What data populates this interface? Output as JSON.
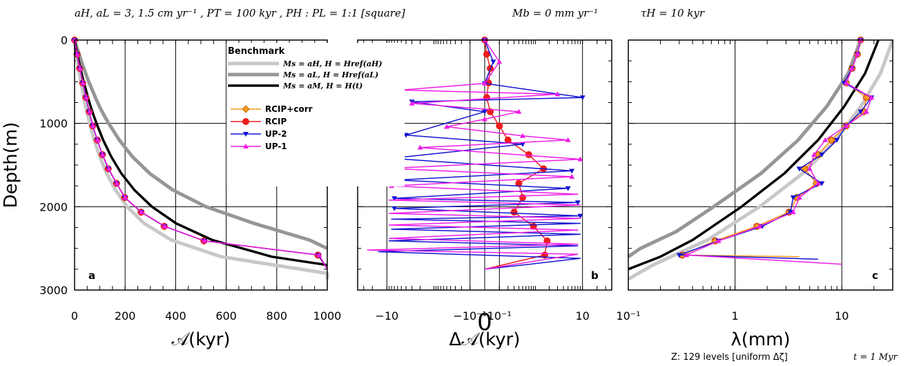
{
  "header": {
    "params": "aH, aL = 3, 1.5 cm yr⁻¹ ,  PT = 100 kyr ,  PH : PL = 1:1  [square]",
    "mb": "Mb = 0 mm yr⁻¹",
    "tau": "τH = 10 kyr"
  },
  "footer": {
    "levels": "Z:  129 levels [uniform Δζ]",
    "time": "t = 1 Myr"
  },
  "legend": {
    "title": "Benchmark",
    "entries": [
      {
        "label": "Ms = aH, H = Href(aH)",
        "color": "#c8c8c8",
        "width": 5
      },
      {
        "label": "Ms = aL, H = Href(aL)",
        "color": "#969696",
        "width": 5
      },
      {
        "label": "Ms = aM, H = H(t)",
        "color": "#000000",
        "width": 3.5
      },
      {
        "label": "RCIP+corr",
        "color": "#f59a1b",
        "marker": "diamond"
      },
      {
        "label": "RCIP",
        "color": "#ee1c1c",
        "marker": "circle"
      },
      {
        "label": "UP-2",
        "color": "#1414d2",
        "marker": "tri-down"
      },
      {
        "label": "UP-1",
        "color": "#ee1ce6",
        "marker": "tri-up"
      }
    ]
  },
  "chart_data": [
    {
      "panel": "a",
      "type": "line",
      "xlabel": "𝒜(kyr)",
      "ylabel": "Depth(m)",
      "xlim": [
        0,
        1000
      ],
      "ylim": [
        3000,
        0
      ],
      "xticks": [
        "0",
        "200",
        "400",
        "600",
        "800",
        "1000"
      ],
      "yticks": [
        "0",
        "1000",
        "2000",
        "3000"
      ],
      "grid": true,
      "series": [
        {
          "name": "Ms = aH, H = Href(aH)",
          "depth": [
            0,
            100,
            200,
            300,
            400,
            500,
            600,
            700,
            800,
            900,
            1000,
            1200,
            1400,
            1600,
            1800,
            2000,
            2200,
            2400,
            2600,
            2800,
            2870
          ],
          "values": [
            0,
            4,
            9,
            14,
            19,
            25,
            31,
            37,
            44,
            52,
            60,
            78,
            100,
            127,
            162,
            208,
            275,
            383,
            580,
            1000,
            1000
          ]
        },
        {
          "name": "Ms = aL, H = Href(aL)",
          "depth": [
            0,
            100,
            200,
            300,
            400,
            500,
            600,
            700,
            800,
            900,
            1000,
            1200,
            1400,
            1600,
            1800,
            2000,
            2200,
            2400,
            2500
          ],
          "values": [
            0,
            10,
            21,
            32,
            44,
            56,
            70,
            84,
            99,
            116,
            135,
            177,
            229,
            297,
            389,
            520,
            710,
            930,
            1000
          ]
        },
        {
          "name": "Ms = aM, H = H(t)",
          "depth": [
            0,
            100,
            200,
            300,
            400,
            500,
            600,
            700,
            800,
            900,
            1000,
            1200,
            1400,
            1600,
            1800,
            2000,
            2200,
            2400,
            2600,
            2700
          ],
          "values": [
            0,
            6,
            13,
            20,
            28,
            36,
            45,
            54,
            64,
            75,
            87,
            113,
            145,
            185,
            237,
            306,
            402,
            545,
            780,
            1000
          ]
        },
        {
          "name": "RCIP+corr",
          "depth": [
            0,
            170,
            340,
            515,
            690,
            860,
            1030,
            1200,
            1375,
            1545,
            1720,
            1890,
            2065,
            2235,
            2410,
            2580,
            2750
          ],
          "values": [
            0,
            10,
            20,
            32,
            45,
            58,
            72,
            90,
            110,
            133,
            166,
            198,
            263,
            355,
            512,
            963,
            1000
          ]
        },
        {
          "name": "RCIP",
          "depth": [
            0,
            170,
            340,
            515,
            690,
            860,
            1030,
            1200,
            1375,
            1545,
            1720,
            1890,
            2065,
            2235,
            2410,
            2580,
            2750
          ],
          "values": [
            0,
            10,
            20,
            32,
            45,
            58,
            72,
            90,
            110,
            133,
            166,
            198,
            263,
            355,
            512,
            963,
            1000
          ]
        },
        {
          "name": "UP-2",
          "depth": [
            0,
            170,
            340,
            515,
            690,
            860,
            1030,
            1200,
            1375,
            1545,
            1720,
            1890,
            2065,
            2235,
            2410,
            2580,
            2750
          ],
          "values": [
            0,
            10,
            21,
            32,
            45,
            58,
            72,
            90,
            110,
            134,
            166,
            199,
            264,
            356,
            514,
            965,
            1000
          ]
        },
        {
          "name": "UP-1",
          "depth": [
            0,
            170,
            340,
            515,
            690,
            860,
            1030,
            1200,
            1375,
            1545,
            1720,
            1890,
            2065,
            2235,
            2410,
            2580,
            2750
          ],
          "values": [
            0,
            10,
            21,
            33,
            46,
            59,
            73,
            91,
            111,
            135,
            167,
            200,
            265,
            357,
            515,
            968,
            1000
          ]
        }
      ]
    },
    {
      "panel": "b",
      "type": "line",
      "xlabel": "Δ𝒜(kyr)",
      "xscale": "symlog",
      "xlim": [
        -40,
        40
      ],
      "ylim": [
        3000,
        0
      ],
      "xticks": [
        "−10",
        "−10⁻¹",
        "0",
        "10⁻¹",
        "10"
      ],
      "grid": true,
      "series": [
        {
          "name": "RCIP",
          "depth": [
            0,
            170,
            340,
            515,
            690,
            860,
            1030,
            1200,
            1375,
            1545,
            1720,
            1890,
            2065,
            2235,
            2410,
            2580,
            2750
          ],
          "values": [
            0,
            0.01,
            0.03,
            0.02,
            0.01,
            0.03,
            0.1,
            0.2,
            0.7,
            1.5,
            0.4,
            0.5,
            0.3,
            0.9,
            1.8,
            1.6,
            0
          ]
        },
        {
          "name": "UP-2",
          "depth": [
            0,
            260,
            520,
            690,
            740,
            860,
            1140,
            1250,
            1420,
            1570,
            1680,
            1780,
            1900,
            1950,
            2020,
            2110,
            2150,
            2200,
            2270,
            2330,
            2410,
            2470,
            2540,
            2620,
            2700,
            2750
          ],
          "values": [
            0,
            0.05,
            0,
            10,
            -3,
            0,
            -4,
            0.5,
            -8,
            6,
            -6,
            5,
            -7,
            8,
            -7,
            9,
            -8,
            9,
            -8,
            9,
            -9,
            8,
            -15,
            9,
            0.5,
            0
          ]
        },
        {
          "name": "UP-1",
          "depth": [
            0,
            260,
            520,
            600,
            650,
            760,
            860,
            950,
            1040,
            1150,
            1200,
            1290,
            1430,
            1540,
            1640,
            1750,
            1850,
            1920,
            1980,
            2080,
            2140,
            2220,
            2280,
            2380,
            2450,
            2520,
            2570,
            2750
          ],
          "values": [
            0,
            0.1,
            0,
            -5,
            3,
            -3,
            0.4,
            0,
            -0.5,
            0.5,
            5,
            -2,
            9,
            -9,
            6,
            -8,
            8,
            -9,
            9,
            -9,
            9,
            -9,
            8,
            -9,
            8,
            -25,
            8,
            0
          ]
        }
      ]
    },
    {
      "panel": "c",
      "type": "line",
      "xlabel": "λ(mm)",
      "xscale": "log",
      "xlim": [
        0.1,
        30
      ],
      "ylim": [
        3000,
        0
      ],
      "xticks": [
        "10⁻¹",
        "1",
        "10"
      ],
      "grid": true,
      "series": [
        {
          "name": "Ms = aH, H = Href(aH)",
          "depth": [
            0,
            400,
            800,
            1200,
            1600,
            2000,
            2400,
            2700,
            2870
          ],
          "values": [
            30,
            23,
            15,
            8.8,
            4.3,
            1.7,
            0.55,
            0.17,
            0.1
          ]
        },
        {
          "name": "Ms = aL, H = Href(aL)",
          "depth": [
            0,
            400,
            800,
            1200,
            1600,
            2000,
            2300,
            2500,
            2600
          ],
          "values": [
            15,
            11.5,
            7.2,
            3.9,
            1.75,
            0.63,
            0.28,
            0.13,
            0.1
          ]
        },
        {
          "name": "Ms = aM, H = H(t)",
          "depth": [
            0,
            400,
            800,
            1200,
            1600,
            2000,
            2400,
            2600,
            2750
          ],
          "values": [
            22,
            16.5,
            10.5,
            6,
            2.9,
            1.15,
            0.4,
            0.2,
            0.1
          ]
        },
        {
          "name": "RCIP",
          "depth": [
            0,
            170,
            340,
            515,
            690,
            860,
            1030,
            1200,
            1375,
            1545,
            1720,
            1890,
            2065,
            2235,
            2410,
            2580
          ],
          "values": [
            15,
            14,
            12.5,
            11,
            17,
            16,
            11,
            8,
            6,
            4.5,
            5.8,
            3.8,
            3.2,
            1.6,
            0.65,
            0.32
          ]
        },
        {
          "name": "RCIP+corr",
          "depth": [
            0,
            170,
            340,
            515,
            690,
            860,
            1030,
            1200,
            1375,
            1545,
            1720,
            1890,
            2065,
            2235,
            2410,
            2580,
            2600
          ],
          "values": [
            15,
            14,
            12.5,
            11,
            17,
            16,
            11,
            8,
            6,
            4.5,
            5.8,
            3.8,
            3.2,
            1.6,
            0.65,
            0.32,
            4
          ]
        },
        {
          "name": "UP-2",
          "depth": [
            0,
            170,
            340,
            515,
            690,
            860,
            1030,
            1200,
            1375,
            1545,
            1720,
            1890,
            2065,
            2235,
            2410,
            2580,
            2630
          ],
          "values": [
            15,
            14,
            12.5,
            10.5,
            19,
            15,
            11,
            9,
            6.5,
            4,
            6.5,
            3.5,
            3.3,
            1.8,
            0.7,
            0.3,
            6
          ]
        },
        {
          "name": "UP-1",
          "depth": [
            0,
            170,
            340,
            515,
            690,
            860,
            1030,
            1200,
            1375,
            1545,
            1720,
            1890,
            2065,
            2235,
            2410,
            2580,
            2690
          ],
          "values": [
            15,
            14,
            12.5,
            11,
            19,
            17,
            11,
            7,
            5.5,
            5,
            6,
            4,
            3.5,
            1.7,
            0.7,
            0.35,
            10
          ]
        }
      ]
    }
  ]
}
